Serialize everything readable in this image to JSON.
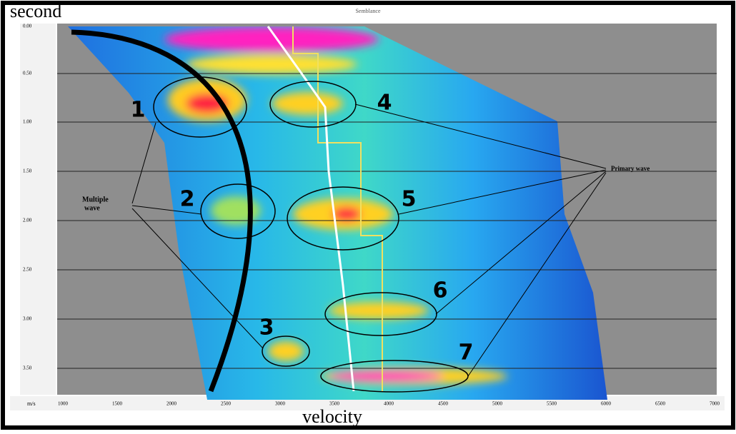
{
  "header": {
    "title": "Semblance"
  },
  "axes": {
    "y_label": "second",
    "x_label": "velocity",
    "x_unit": "m/s",
    "y_ticks": [
      "0.00",
      "0.50",
      "1.00",
      "1.50",
      "2.00",
      "2.50",
      "3.00",
      "3.50"
    ],
    "x_ticks": [
      "1000",
      "1500",
      "2000",
      "2500",
      "3000",
      "3500",
      "4000",
      "4500",
      "5000",
      "5500",
      "6000",
      "6500",
      "7000"
    ]
  },
  "annotations": {
    "numbers": [
      "1",
      "2",
      "3",
      "4",
      "5",
      "6",
      "7"
    ],
    "multiple_wave": [
      "Multiple",
      "wave"
    ],
    "primary_wave": "Primary wave"
  }
}
